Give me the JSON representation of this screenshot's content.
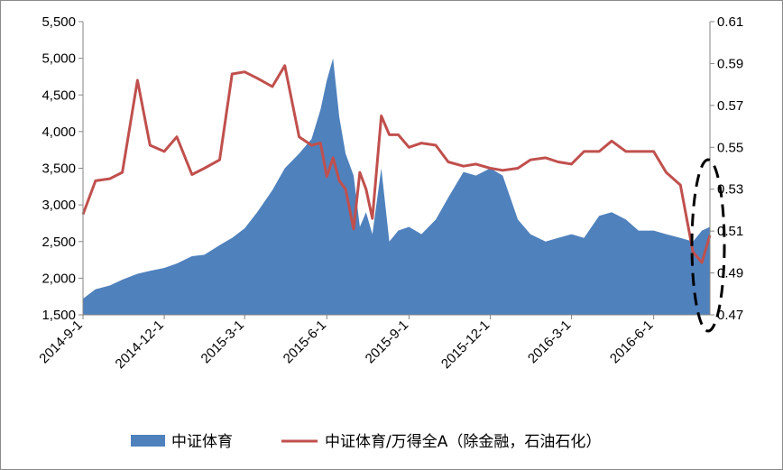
{
  "chart_data": {
    "type": "area",
    "x": [
      "2014-09-01",
      "2014-09-15",
      "2014-10-01",
      "2014-10-15",
      "2014-11-01",
      "2014-11-15",
      "2014-12-01",
      "2014-12-15",
      "2015-01-01",
      "2015-01-15",
      "2015-02-01",
      "2015-02-15",
      "2015-03-01",
      "2015-03-15",
      "2015-04-01",
      "2015-04-15",
      "2015-05-01",
      "2015-05-15",
      "2015-05-25",
      "2015-06-01",
      "2015-06-08",
      "2015-06-15",
      "2015-06-22",
      "2015-07-01",
      "2015-07-08",
      "2015-07-15",
      "2015-07-22",
      "2015-08-01",
      "2015-08-10",
      "2015-08-20",
      "2015-09-01",
      "2015-09-15",
      "2015-10-01",
      "2015-10-15",
      "2015-11-01",
      "2015-11-15",
      "2015-12-01",
      "2015-12-15",
      "2016-01-01",
      "2016-01-15",
      "2016-02-01",
      "2016-02-15",
      "2016-03-01",
      "2016-03-15",
      "2016-04-01",
      "2016-04-15",
      "2016-05-01",
      "2016-05-15",
      "2016-06-01",
      "2016-06-15",
      "2016-07-01",
      "2016-07-15",
      "2016-07-25",
      "2016-08-03"
    ],
    "series": [
      {
        "name": "中证体育",
        "type": "area",
        "axis": "left",
        "color": "#4f81bd",
        "values": [
          1720,
          1850,
          1900,
          1980,
          2060,
          2100,
          2140,
          2200,
          2300,
          2320,
          2450,
          2550,
          2680,
          2900,
          3200,
          3500,
          3700,
          3900,
          4300,
          4700,
          5000,
          4200,
          3700,
          3400,
          2700,
          2900,
          2600,
          3500,
          2500,
          2650,
          2700,
          2600,
          2800,
          3100,
          3450,
          3400,
          3500,
          3400,
          2800,
          2600,
          2500,
          2550,
          2600,
          2550,
          2850,
          2900,
          2800,
          2650,
          2650,
          2600,
          2550,
          2500,
          2650,
          2700
        ]
      },
      {
        "name": "中证体育/万得全A（除金融，石油石化）",
        "type": "line",
        "axis": "right",
        "color": "#c0504d",
        "values": [
          0.518,
          0.534,
          0.535,
          0.538,
          0.582,
          0.551,
          0.548,
          0.555,
          0.537,
          0.54,
          0.544,
          0.585,
          0.586,
          0.583,
          0.579,
          0.589,
          0.555,
          0.551,
          0.552,
          0.536,
          0.545,
          0.534,
          0.53,
          0.511,
          0.538,
          0.53,
          0.516,
          0.565,
          0.556,
          0.556,
          0.55,
          0.552,
          0.551,
          0.543,
          0.541,
          0.542,
          0.54,
          0.539,
          0.54,
          0.544,
          0.545,
          0.543,
          0.542,
          0.548,
          0.548,
          0.553,
          0.548,
          0.548,
          0.548,
          0.538,
          0.532,
          0.5,
          0.495,
          0.508
        ]
      }
    ],
    "xticks": [
      "2014-9-1",
      "2014-12-1",
      "2015-3-1",
      "2015-6-1",
      "2015-9-1",
      "2015-12-1",
      "2016-3-1",
      "2016-6-1"
    ],
    "yticks_left": [
      "1,500",
      "2,000",
      "2,500",
      "3,000",
      "3,500",
      "4,000",
      "4,500",
      "5,000",
      "5,500"
    ],
    "yticks_right": [
      "0.47",
      "0.49",
      "0.51",
      "0.53",
      "0.55",
      "0.57",
      "0.59",
      "0.61"
    ],
    "ylim_left": [
      1500,
      5500
    ],
    "ylim_right": [
      0.47,
      0.61
    ],
    "grid": false,
    "legend_position": "bottom",
    "annotation": "dashed ellipse highlighting the most recent segment",
    "title": "",
    "xlabel": "",
    "ylabel": ""
  }
}
